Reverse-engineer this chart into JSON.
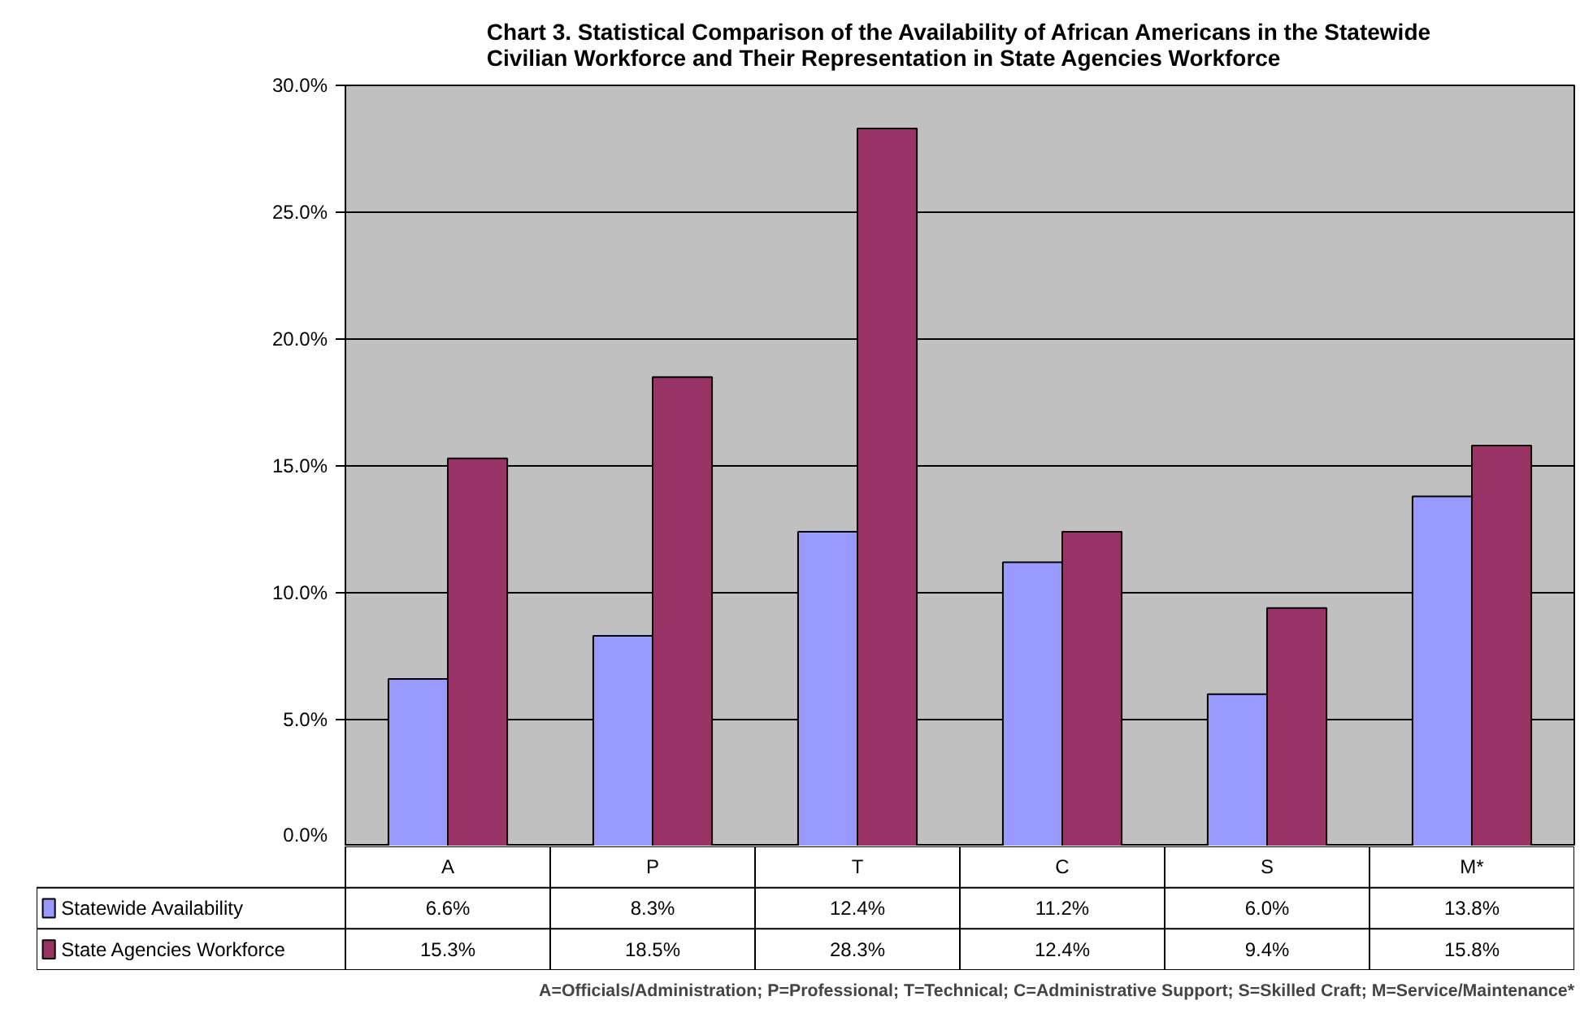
{
  "chart_data": {
    "type": "bar",
    "title": "Chart 3. Statistical Comparison of the Availability of African Americans in the Statewide\nCivilian Workforce and Their Representation in State Agencies Workforce",
    "categories": [
      "A",
      "P",
      "T",
      "C",
      "S",
      "M*"
    ],
    "series": [
      {
        "name": "Statewide Availability",
        "color": "#9999ff",
        "values": [
          6.6,
          8.3,
          12.4,
          11.2,
          6.0,
          13.8
        ],
        "value_labels": [
          "6.6%",
          "8.3%",
          "12.4%",
          "11.2%",
          "6.0%",
          "13.8%"
        ]
      },
      {
        "name": "State Agencies Workforce",
        "color": "#993366",
        "values": [
          15.3,
          18.5,
          28.3,
          12.4,
          9.4,
          15.8
        ],
        "value_labels": [
          "15.3%",
          "18.5%",
          "28.3%",
          "12.4%",
          "9.4%",
          "15.8%"
        ]
      }
    ],
    "ylim": [
      0,
      30
    ],
    "yticks": [
      {
        "value": 0,
        "label": "0.0%"
      },
      {
        "value": 5,
        "label": "5.0%"
      },
      {
        "value": 10,
        "label": "10.0%"
      },
      {
        "value": 15,
        "label": "15.0%"
      },
      {
        "value": 20,
        "label": "20.0%"
      },
      {
        "value": 25,
        "label": "25.0%"
      },
      {
        "value": 30,
        "label": "30.0%"
      }
    ],
    "grid": "y",
    "legend": "bottom left",
    "annotations": [
      "A=Officials/Administration; P=Professional; T=Technical; C=Administrative Support; S=Skilled Craft; M=Service/Maintenance*"
    ]
  }
}
